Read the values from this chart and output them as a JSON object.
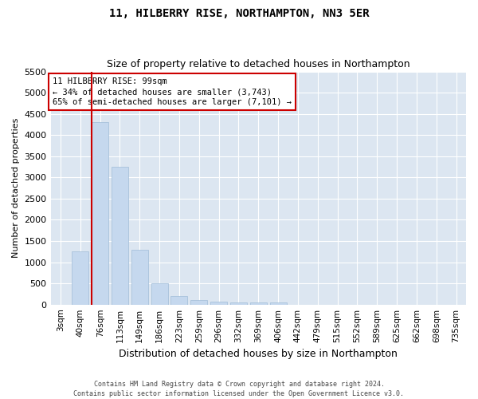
{
  "title": "11, HILBERRY RISE, NORTHAMPTON, NN3 5ER",
  "subtitle": "Size of property relative to detached houses in Northampton",
  "xlabel": "Distribution of detached houses by size in Northampton",
  "ylabel": "Number of detached properties",
  "footer_line1": "Contains HM Land Registry data © Crown copyright and database right 2024.",
  "footer_line2": "Contains public sector information licensed under the Open Government Licence v3.0.",
  "bar_labels": [
    "3sqm",
    "40sqm",
    "76sqm",
    "113sqm",
    "149sqm",
    "186sqm",
    "223sqm",
    "259sqm",
    "296sqm",
    "332sqm",
    "369sqm",
    "406sqm",
    "442sqm",
    "479sqm",
    "515sqm",
    "552sqm",
    "589sqm",
    "625sqm",
    "662sqm",
    "698sqm",
    "735sqm"
  ],
  "bar_values": [
    0,
    1250,
    4300,
    3250,
    1300,
    500,
    200,
    100,
    75,
    55,
    50,
    50,
    0,
    0,
    0,
    0,
    0,
    0,
    0,
    0,
    0
  ],
  "bar_color": "#c5d8ee",
  "bar_edgecolor": "#a0bcd8",
  "vline_color": "#cc0000",
  "annotation_text": "11 HILBERRY RISE: 99sqm\n← 34% of detached houses are smaller (3,743)\n65% of semi-detached houses are larger (7,101) →",
  "annotation_box_facecolor": "#ffffff",
  "annotation_box_edgecolor": "#cc0000",
  "ylim": [
    0,
    5500
  ],
  "yticks": [
    0,
    500,
    1000,
    1500,
    2000,
    2500,
    3000,
    3500,
    4000,
    4500,
    5000,
    5500
  ],
  "plot_background": "#dce6f1",
  "grid_color": "#ffffff",
  "title_fontsize": 10,
  "subtitle_fontsize": 9,
  "vline_bar_index": 2
}
